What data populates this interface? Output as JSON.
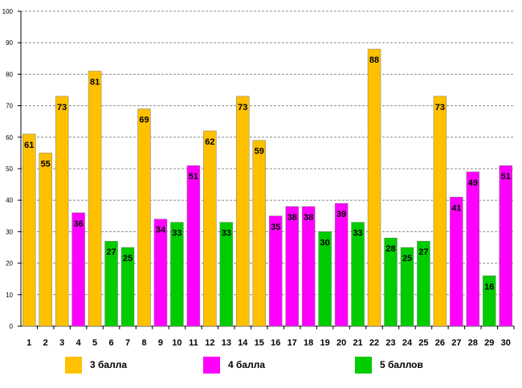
{
  "chart_data": {
    "type": "bar",
    "title": "",
    "xlabel": "",
    "ylabel": "",
    "ylim": [
      0,
      100
    ],
    "yticks": [
      0,
      10,
      20,
      30,
      40,
      50,
      60,
      70,
      80,
      90,
      100
    ],
    "grid": true,
    "categories": [
      "1",
      "2",
      "3",
      "4",
      "5",
      "6",
      "7",
      "8",
      "9",
      "10",
      "11",
      "12",
      "13",
      "14",
      "15",
      "16",
      "17",
      "18",
      "19",
      "20",
      "21",
      "22",
      "23",
      "24",
      "25",
      "26",
      "27",
      "28",
      "29",
      "30"
    ],
    "values": [
      61,
      55,
      73,
      36,
      81,
      27,
      25,
      69,
      34,
      33,
      51,
      62,
      33,
      73,
      59,
      35,
      38,
      38,
      30,
      39,
      33,
      88,
      28,
      25,
      27,
      73,
      41,
      49,
      16,
      51
    ],
    "groups": [
      "3",
      "3",
      "3",
      "4",
      "3",
      "5",
      "5",
      "3",
      "4",
      "5",
      "4",
      "3",
      "5",
      "3",
      "3",
      "4",
      "4",
      "4",
      "5",
      "4",
      "5",
      "3",
      "5",
      "5",
      "5",
      "3",
      "4",
      "4",
      "5",
      "4"
    ],
    "legend": [
      {
        "key": "3",
        "label": "3 балла",
        "color": "#FFC000"
      },
      {
        "key": "4",
        "label": "4 балла",
        "color": "#FF00FF"
      },
      {
        "key": "5",
        "label": "5 баллов",
        "color": "#00CC00"
      }
    ],
    "legend_position": "bottom"
  }
}
